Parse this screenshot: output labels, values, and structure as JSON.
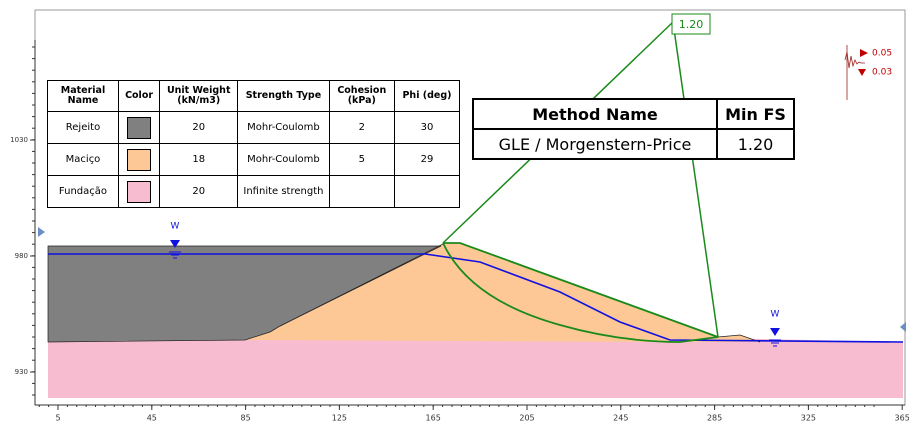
{
  "materials": {
    "headers": [
      "Material Name",
      "Color",
      "Unit Weight (kN/m3)",
      "Strength Type",
      "Cohesion (kPa)",
      "Phi (deg)"
    ],
    "rows": [
      {
        "name": "Rejeito",
        "color": "#808080",
        "unit_weight": 20,
        "strength_type": "Mohr-Coulomb",
        "cohesion": 2,
        "phi": 30
      },
      {
        "name": "Maciço",
        "color": "#fdc896",
        "unit_weight": 18,
        "strength_type": "Mohr-Coulomb",
        "cohesion": 5,
        "phi": 29
      },
      {
        "name": "Fundação",
        "color": "#f8bcd0",
        "unit_weight": 20,
        "strength_type": "Infinite strength",
        "cohesion": null,
        "phi": null
      }
    ]
  },
  "method_table": {
    "headers": [
      "Method Name",
      "Min FS"
    ],
    "row": [
      "GLE / Morgenstern-Price",
      "1.20"
    ]
  },
  "slip_label": "1.20",
  "water_labels": [
    "W",
    "W"
  ],
  "legend": [
    "0.05",
    "0.03"
  ],
  "x_ticks": [
    5,
    45,
    85,
    125,
    165,
    205,
    245,
    285,
    325,
    365
  ],
  "y_ticks": [
    1030,
    980,
    930
  ]
}
